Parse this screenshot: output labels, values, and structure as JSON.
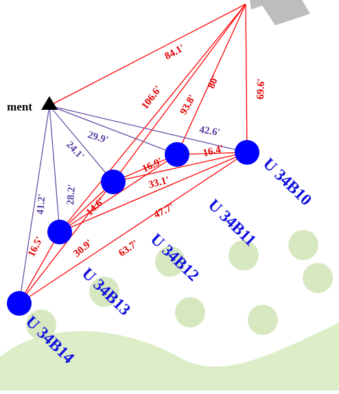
{
  "monument_label": "ment",
  "colors": {
    "red_line": "#ff0000",
    "purple_line": "#6a4fa6",
    "red_text": "#e00000",
    "purple_text": "#5a3fa0",
    "unit_fill": "#0000ff",
    "unit_text": "#1010e0",
    "grass": "#dcedc8",
    "tree": "#d7e8c0",
    "building": "#bdbdbd",
    "monument": "#000000"
  },
  "units": [
    {
      "id": "U 34B10"
    },
    {
      "id": "U 34B11"
    },
    {
      "id": "U 34B12"
    },
    {
      "id": "U 34B13"
    },
    {
      "id": "U 34B14"
    }
  ],
  "measurements_red": [
    "84.1'",
    "106.6'",
    "93.8'",
    "80'",
    "69.6'",
    "16.4'",
    "16.9'",
    "33.1'",
    "14.6'",
    "47.7'",
    "30.9'",
    "63.7'",
    "16.5'"
  ],
  "measurements_purple": [
    "29.9'",
    "24.1'",
    "42.6'",
    "28.2'",
    "41.2'"
  ]
}
